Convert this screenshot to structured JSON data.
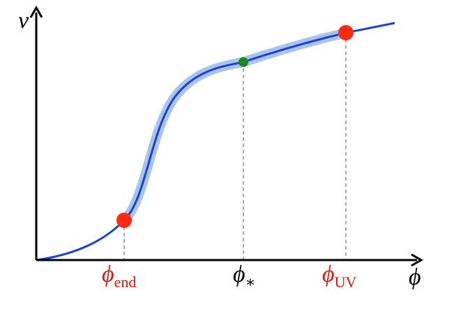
{
  "axes": {
    "y_label": "v",
    "x_label": "ϕ"
  },
  "markers": [
    {
      "symbol": "ϕ",
      "subscript": "end"
    },
    {
      "symbol": "ϕ",
      "subscript": "∗"
    },
    {
      "symbol": "ϕ",
      "subscript": "UV"
    }
  ]
}
